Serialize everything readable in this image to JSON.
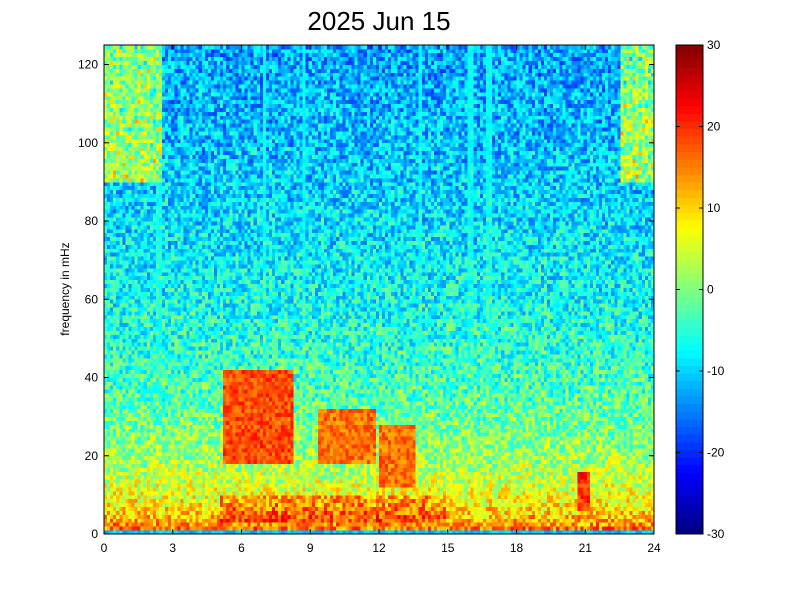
{
  "chart_data": {
    "type": "heatmap",
    "title": "2025 Jun 15",
    "xlabel": "",
    "ylabel": "frequency in mHz",
    "xlim": [
      0,
      24
    ],
    "ylim": [
      0,
      125
    ],
    "xticks": [
      0,
      3,
      6,
      9,
      12,
      15,
      18,
      21,
      24
    ],
    "yticks": [
      0,
      20,
      40,
      60,
      80,
      100,
      120
    ],
    "colorbar": {
      "range": [
        -30,
        30
      ],
      "ticks": [
        30,
        20,
        10,
        0,
        -10,
        -20,
        -30
      ],
      "colormap": "jet"
    },
    "grid": false,
    "legend": "none",
    "features": {
      "vertical_lines_hours": [
        2.4,
        7.0,
        8.7,
        13.8,
        16.0,
        16.8
      ],
      "high_intensity_blobs": [
        {
          "x": [
            5.2,
            8.3
          ],
          "y": [
            18,
            42
          ],
          "value": 22
        },
        {
          "x": [
            9.3,
            11.8
          ],
          "y": [
            18,
            32
          ],
          "value": 20
        },
        {
          "x": [
            12.0,
            13.6
          ],
          "y": [
            12,
            28
          ],
          "value": 20
        },
        {
          "x": [
            20.7,
            21.2
          ],
          "y": [
            6,
            16
          ],
          "value": 24
        }
      ],
      "band_low_freq_mhz": [
        0,
        10
      ]
    }
  }
}
